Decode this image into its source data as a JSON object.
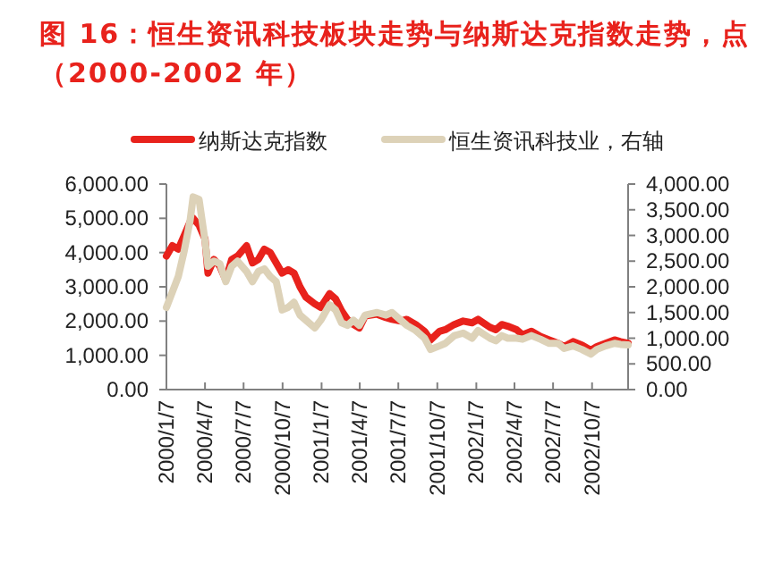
{
  "chart_data": {
    "type": "line",
    "title": "图 16：恒生资讯科技板块走势与纳斯达克指数走势，点（2000-2002 年）",
    "xlim": [
      "2000-01-07",
      "2002-12-31"
    ],
    "xticks": [
      {
        "value": "2000-01-07",
        "label": "2000/1/7"
      },
      {
        "value": "2000-04-07",
        "label": "2000/4/7"
      },
      {
        "value": "2000-07-07",
        "label": "2000/7/7"
      },
      {
        "value": "2000-10-07",
        "label": "2000/10/7"
      },
      {
        "value": "2001-01-07",
        "label": "2001/1/7"
      },
      {
        "value": "2001-04-07",
        "label": "2001/4/7"
      },
      {
        "value": "2001-07-07",
        "label": "2001/7/7"
      },
      {
        "value": "2001-10-07",
        "label": "2001/10/7"
      },
      {
        "value": "2002-01-07",
        "label": "2002/1/7"
      },
      {
        "value": "2002-04-07",
        "label": "2002/4/7"
      },
      {
        "value": "2002-07-07",
        "label": "2002/7/7"
      },
      {
        "value": "2002-10-07",
        "label": "2002/10/7"
      }
    ],
    "ylim": [
      0,
      6000
    ],
    "yticks": [
      {
        "value": 0,
        "label": "0.00"
      },
      {
        "value": 1000,
        "label": "1,000.00"
      },
      {
        "value": 2000,
        "label": "2,000.00"
      },
      {
        "value": 3000,
        "label": "3,000.00"
      },
      {
        "value": 4000,
        "label": "4,000.00"
      },
      {
        "value": 5000,
        "label": "5,000.00"
      },
      {
        "value": 6000,
        "label": "6,000.00"
      }
    ],
    "y2lim": [
      0,
      4000
    ],
    "y2ticks": [
      {
        "value": 0,
        "label": "0.00"
      },
      {
        "value": 500,
        "label": "500.00"
      },
      {
        "value": 1000,
        "label": "1,000.00"
      },
      {
        "value": 1500,
        "label": "1,500.00"
      },
      {
        "value": 2000,
        "label": "2,000.00"
      },
      {
        "value": 2500,
        "label": "2,500.00"
      },
      {
        "value": 3000,
        "label": "3,000.00"
      },
      {
        "value": 3500,
        "label": "3,500.00"
      },
      {
        "value": 4000,
        "label": "4,000.00"
      }
    ],
    "legend": "top",
    "grid": false,
    "x": [
      "2000-01-07",
      "2000-01-21",
      "2000-02-04",
      "2000-02-18",
      "2000-03-03",
      "2000-03-10",
      "2000-03-24",
      "2000-04-07",
      "2000-04-14",
      "2000-04-28",
      "2000-05-12",
      "2000-05-26",
      "2000-06-09",
      "2000-06-23",
      "2000-07-14",
      "2000-07-28",
      "2000-08-11",
      "2000-08-25",
      "2000-09-08",
      "2000-09-22",
      "2000-10-06",
      "2000-10-20",
      "2000-11-03",
      "2000-11-17",
      "2000-12-01",
      "2000-12-22",
      "2001-01-05",
      "2001-01-26",
      "2001-02-09",
      "2001-02-23",
      "2001-03-09",
      "2001-03-23",
      "2001-04-06",
      "2001-04-20",
      "2001-05-18",
      "2001-06-08",
      "2001-06-22",
      "2001-07-13",
      "2001-07-27",
      "2001-08-17",
      "2001-09-07",
      "2001-09-21",
      "2001-10-12",
      "2001-10-26",
      "2001-11-16",
      "2001-12-07",
      "2001-12-28",
      "2002-01-11",
      "2002-02-08",
      "2002-02-22",
      "2002-03-08",
      "2002-03-22",
      "2002-04-12",
      "2002-04-26",
      "2002-05-17",
      "2002-06-07",
      "2002-06-28",
      "2002-07-19",
      "2002-08-02",
      "2002-08-23",
      "2002-09-13",
      "2002-10-04",
      "2002-10-18",
      "2002-11-08",
      "2002-11-29",
      "2002-12-13",
      "2002-12-31"
    ],
    "series": [
      {
        "name": "纳斯达克指数",
        "color": "#e8221c",
        "values": [
          3900,
          4200,
          4100,
          4500,
          4900,
          5000,
          4800,
          4400,
          3400,
          3800,
          3600,
          3200,
          3800,
          3900,
          4200,
          3700,
          3800,
          4100,
          4000,
          3700,
          3400,
          3500,
          3400,
          3000,
          2700,
          2500,
          2400,
          2800,
          2650,
          2300,
          2050,
          1900,
          1800,
          2150,
          2200,
          2100,
          2050,
          2000,
          2050,
          1900,
          1700,
          1450,
          1700,
          1750,
          1900,
          2000,
          1950,
          2050,
          1820,
          1750,
          1900,
          1850,
          1750,
          1600,
          1700,
          1550,
          1450,
          1350,
          1250,
          1400,
          1300,
          1150,
          1250,
          1350,
          1450,
          1400,
          1350
        ]
      },
      {
        "name": "恒生资讯科技业，右轴",
        "color": "#ddd2b8",
        "axis": "y2",
        "values": [
          1600,
          1900,
          2200,
          2700,
          3300,
          3750,
          3700,
          2900,
          2400,
          2500,
          2450,
          2100,
          2400,
          2500,
          2300,
          2100,
          2300,
          2350,
          2200,
          2100,
          1550,
          1600,
          1700,
          1450,
          1350,
          1200,
          1350,
          1650,
          1550,
          1300,
          1250,
          1350,
          1250,
          1450,
          1500,
          1450,
          1500,
          1350,
          1250,
          1150,
          1000,
          780,
          850,
          900,
          1050,
          1100,
          1000,
          1150,
          1000,
          950,
          1050,
          1000,
          1000,
          980,
          1050,
          980,
          900,
          900,
          800,
          850,
          780,
          690,
          780,
          850,
          900,
          880,
          870
        ]
      }
    ]
  }
}
